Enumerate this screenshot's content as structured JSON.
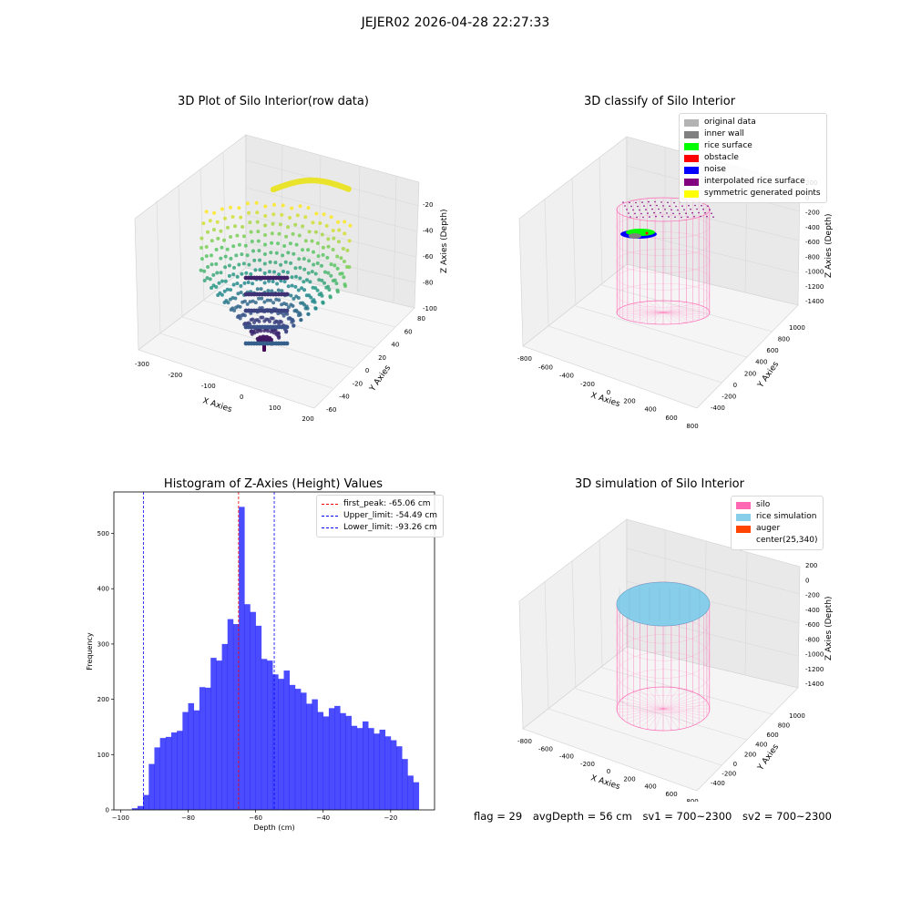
{
  "suptitle": "JEJER02 2026-04-28 22:27:33",
  "panels": {
    "raw": {
      "title": "3D Plot of Silo Interior(row data)",
      "xlabel": "X Axies",
      "ylabel": "Y Axies",
      "zlabel": "Z Axies (Depth)",
      "xticks": [
        "-300",
        "-200",
        "-100",
        "0",
        "100",
        "200"
      ],
      "yticks": [
        "-60",
        "-40",
        "-20",
        "0",
        "20",
        "40",
        "60",
        "80"
      ],
      "zticks": [
        "-100",
        "-80",
        "-60",
        "-40",
        "-20"
      ]
    },
    "classify": {
      "title": "3D classify of Silo Interior",
      "xlabel": "X Axies",
      "ylabel": "Y Axies",
      "zlabel": "Z Axies (Depth)",
      "xticks": [
        "-800",
        "-600",
        "-400",
        "-200",
        "0",
        "200",
        "400",
        "600",
        "800"
      ],
      "yticks": [
        "-400",
        "-200",
        "0",
        "200",
        "400",
        "600",
        "800",
        "1000"
      ],
      "zticks": [
        "-1400",
        "-1200",
        "-1000",
        "-800",
        "-600",
        "-400",
        "-200",
        "0",
        "200"
      ],
      "legend": [
        {
          "label": "original data",
          "color": "#b3b3b3"
        },
        {
          "label": "inner wall",
          "color": "#808080"
        },
        {
          "label": "rice surface",
          "color": "#00ff00"
        },
        {
          "label": "obstacle",
          "color": "#ff0000"
        },
        {
          "label": "noise",
          "color": "#0000ff"
        },
        {
          "label": "interpolated rice surface",
          "color": "#800080"
        },
        {
          "label": "symmetric generated points",
          "color": "#ffff00"
        }
      ]
    },
    "simulation": {
      "title": "3D simulation of Silo Interior",
      "xlabel": "X Axies",
      "ylabel": "Y Axies",
      "zlabel": "Z Axies (Depth)",
      "xticks": [
        "-800",
        "-600",
        "-400",
        "-200",
        "0",
        "200",
        "400",
        "600",
        "800"
      ],
      "yticks": [
        "-400",
        "-200",
        "0",
        "200",
        "400",
        "600",
        "800",
        "1000"
      ],
      "zticks": [
        "-1400",
        "-1200",
        "-1000",
        "-800",
        "-600",
        "-400",
        "-200",
        "0",
        "200"
      ],
      "legend": [
        {
          "label": "silo",
          "color": "#ff69b4"
        },
        {
          "label": "rice simulation",
          "color": "#87ceeb"
        },
        {
          "label": "auger",
          "color": "#ff4500"
        },
        {
          "label": "center(25,340)",
          "color": "#ffffff"
        }
      ]
    }
  },
  "chart_data": {
    "type": "bar",
    "title": "Histogram of Z-Axies (Height) Values",
    "xlabel": "Depth (cm)",
    "ylabel": "Frequency",
    "xlim": [
      -102,
      -7
    ],
    "ylim": [
      0,
      575
    ],
    "xticks": [
      -100,
      -80,
      -60,
      -40,
      -20
    ],
    "yticks": [
      0,
      100,
      200,
      300,
      400,
      500
    ],
    "bin_width": 1.667,
    "bin_start": -96.67,
    "values": [
      3,
      7,
      27,
      83,
      113,
      130,
      132,
      140,
      143,
      177,
      193,
      180,
      222,
      221,
      275,
      270,
      300,
      345,
      336,
      548,
      372,
      358,
      333,
      273,
      270,
      245,
      237,
      252,
      226,
      219,
      212,
      192,
      200,
      177,
      169,
      184,
      188,
      175,
      170,
      152,
      148,
      160,
      148,
      138,
      145,
      133,
      126,
      115,
      92,
      62,
      50
    ],
    "color": "#0000ff",
    "lines": [
      {
        "label": "first_peak: -65.06 cm",
        "x": -65.06,
        "color": "#ff0000"
      },
      {
        "label": "Upper_limit: -54.49 cm",
        "x": -54.49,
        "color": "#0000ff"
      },
      {
        "label": "Lower_limit: -93.26 cm",
        "x": -93.26,
        "color": "#0000ff"
      }
    ]
  },
  "status": {
    "flag": "flag = 29",
    "avg_depth": "avgDepth = 56 cm",
    "sv1": "sv1 = 700~2300",
    "sv2": "sv2 = 700~2300"
  }
}
